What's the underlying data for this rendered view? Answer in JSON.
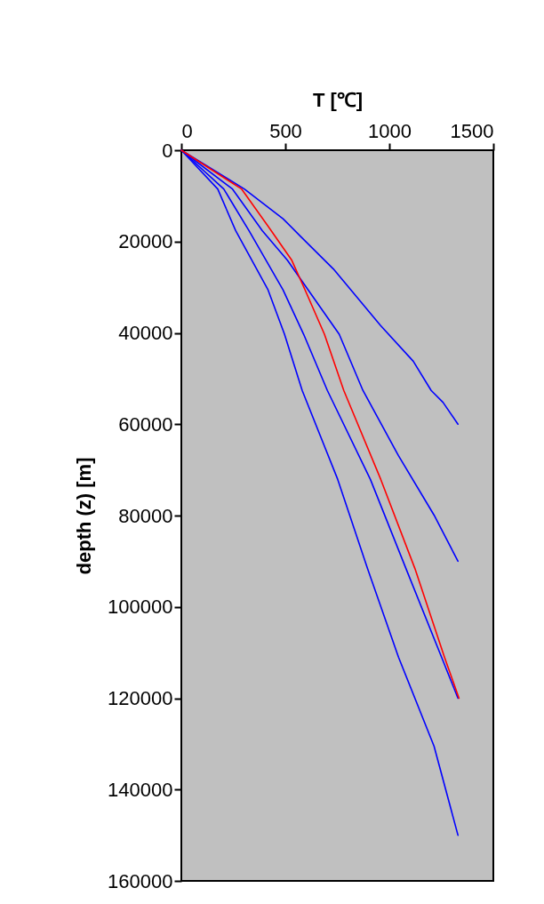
{
  "chart_data": {
    "type": "line",
    "xlabel": "T [℃]",
    "ylabel": "depth (z) [m]",
    "xlim": [
      0,
      1500
    ],
    "xticks": [
      0,
      500,
      1000,
      1500
    ],
    "ylim": [
      160000,
      0
    ],
    "yticks": [
      0,
      20000,
      40000,
      60000,
      80000,
      100000,
      120000,
      140000,
      160000
    ],
    "series": [
      {
        "color": "#0000ff",
        "x": [
          0,
          175,
          261,
          417,
          496,
          581,
          752,
          895,
          1044,
          1215,
          1330
        ],
        "values": [
          0,
          8500,
          17600,
          30600,
          40300,
          52600,
          72100,
          91600,
          111000,
          130500,
          150000
        ]
      },
      {
        "color": "#0000ff",
        "x": [
          0,
          204,
          325,
          489,
          588,
          702,
          909,
          1080,
          1251,
          1330
        ],
        "values": [
          0,
          8500,
          17600,
          30600,
          40300,
          52600,
          72100,
          91600,
          111000,
          120000
        ]
      },
      {
        "color": "#0000ff",
        "x": [
          0,
          246,
          389,
          510,
          610,
          759,
          873,
          1044,
          1215,
          1330
        ],
        "values": [
          0,
          8500,
          17600,
          24100,
          30600,
          40300,
          52600,
          66900,
          79900,
          90000
        ]
      },
      {
        "color": "#0000ff",
        "x": [
          0,
          303,
          489,
          574,
          731,
          958,
          1115,
          1201,
          1258,
          1330
        ],
        "values": [
          0,
          8500,
          15000,
          18900,
          26000,
          38400,
          46200,
          52600,
          55200,
          60000
        ]
      },
      {
        "color": "#ff0000",
        "x": [
          0,
          290,
          432,
          531,
          595,
          688,
          781,
          959,
          1123,
          1265,
          1335
        ],
        "values": [
          0,
          8500,
          17600,
          24100,
          30600,
          40300,
          52600,
          72100,
          91600,
          111000,
          120000
        ]
      }
    ]
  }
}
